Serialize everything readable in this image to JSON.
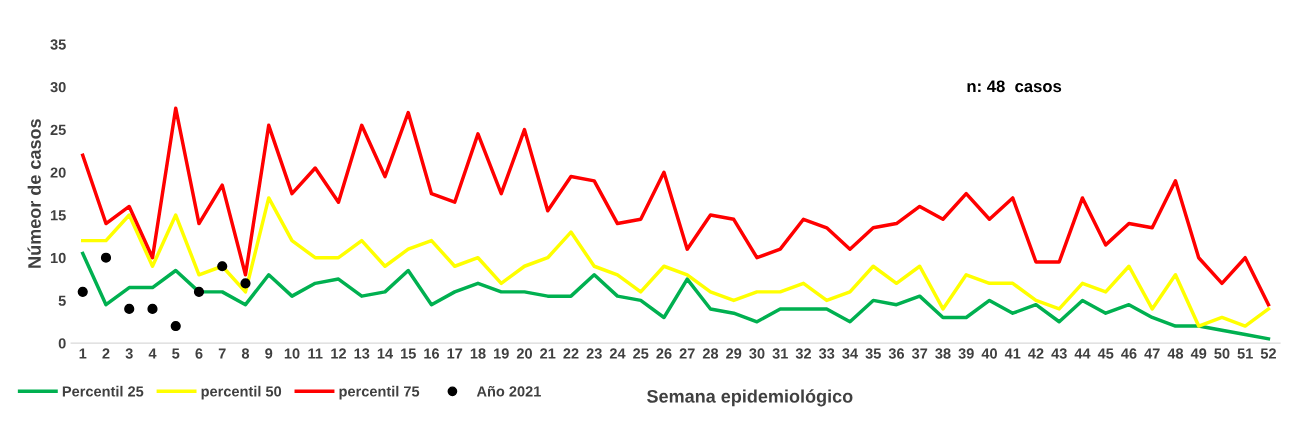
{
  "chart_data": {
    "type": "line",
    "xlabel": "Semana epidemiológico",
    "ylabel": "Númeor de casos",
    "categories": [
      "1",
      "2",
      "3",
      "4",
      "5",
      "6",
      "7",
      "8",
      "9",
      "10",
      "11",
      "12",
      "13",
      "14",
      "15",
      "16",
      "17",
      "18",
      "19",
      "20",
      "21",
      "22",
      "23",
      "24",
      "25",
      "26",
      "27",
      "28",
      "29",
      "30",
      "31",
      "32",
      "33",
      "34",
      "35",
      "36",
      "37",
      "38",
      "39",
      "40",
      "41",
      "42",
      "43",
      "44",
      "45",
      "46",
      "47",
      "48",
      "49",
      "50",
      "51",
      "52"
    ],
    "series": [
      {
        "name": "Percentil 25",
        "color": "#00b050",
        "values": [
          10.5,
          4.5,
          6.5,
          6.5,
          8.5,
          6,
          6,
          4.5,
          8,
          5.5,
          7,
          7.5,
          5.5,
          6,
          8.5,
          4.5,
          6,
          7,
          6,
          6,
          5.5,
          5.5,
          8,
          5.5,
          5,
          3,
          7.5,
          4,
          3.5,
          2.5,
          4,
          4,
          4,
          2.5,
          5,
          4.5,
          5.5,
          3,
          3,
          5,
          3.5,
          4.5,
          2.5,
          5,
          3.5,
          4.5,
          3,
          2,
          2,
          1.5,
          1,
          0.5
        ]
      },
      {
        "name": "percentil 50",
        "color": "#ffff00",
        "values": [
          12,
          12,
          15,
          9,
          15,
          8,
          9,
          6,
          17,
          12,
          10,
          10,
          12,
          9,
          11,
          12,
          9,
          10,
          7,
          9,
          10,
          13,
          9,
          8,
          6,
          9,
          8,
          6,
          5,
          6,
          6,
          7,
          5,
          6,
          9,
          7,
          9,
          4,
          8,
          7,
          7,
          5,
          4,
          7,
          6,
          9,
          4,
          8,
          2,
          3,
          2,
          4
        ]
      },
      {
        "name": "percentil 75",
        "color": "#ff0000",
        "values": [
          22,
          14,
          16,
          10,
          27.5,
          14,
          18.5,
          8,
          25.5,
          17.5,
          20.5,
          16.5,
          25.5,
          19.5,
          27,
          17.5,
          16.5,
          24.5,
          17.5,
          25,
          15.5,
          19.5,
          19,
          14,
          14.5,
          20,
          11,
          15,
          14.5,
          10,
          11,
          14.5,
          13.5,
          11,
          13.5,
          14,
          16,
          14.5,
          17.5,
          14.5,
          17,
          9.5,
          9.5,
          17,
          11.5,
          14,
          13.5,
          19,
          10,
          7,
          10,
          4.5
        ]
      },
      {
        "name": "Año 2021",
        "type": "scatter",
        "color": "#000000",
        "x": [
          "1",
          "2",
          "3",
          "4",
          "5",
          "6",
          "7",
          "8"
        ],
        "values": [
          6,
          10,
          4,
          4,
          2,
          6,
          9,
          7
        ]
      }
    ],
    "ylim": [
      0,
      35
    ],
    "yticks": [
      0,
      5,
      10,
      15,
      20,
      25,
      30,
      35
    ],
    "grid": false,
    "legend": "bottom left",
    "annotations": [
      "n: 48  casos"
    ]
  }
}
